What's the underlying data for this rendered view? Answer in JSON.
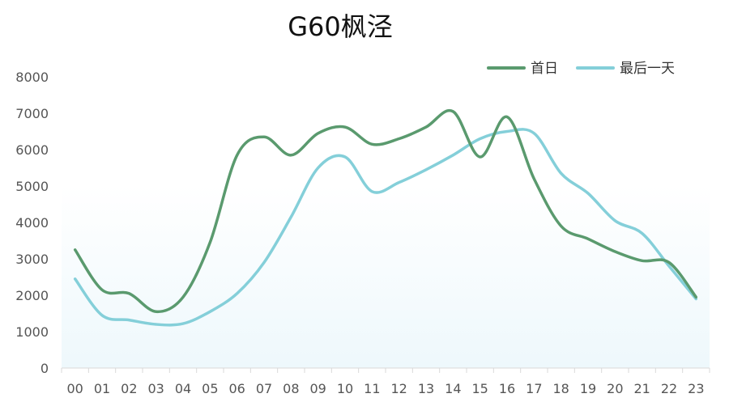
{
  "chart_data": {
    "type": "line",
    "title": "G60枫泾",
    "xlabel": "",
    "ylabel": "",
    "categories": [
      "00",
      "01",
      "02",
      "03",
      "04",
      "05",
      "06",
      "07",
      "08",
      "09",
      "10",
      "11",
      "12",
      "13",
      "14",
      "15",
      "16",
      "17",
      "18",
      "19",
      "20",
      "21",
      "22",
      "23"
    ],
    "ylim": [
      0,
      8000
    ],
    "yticks": [
      0,
      1000,
      2000,
      3000,
      4000,
      5000,
      6000,
      7000,
      8000
    ],
    "grid": false,
    "legend_position": "top-right",
    "series": [
      {
        "name": "首日",
        "color": "#5a9a6e",
        "values": [
          3250,
          2150,
          2050,
          1550,
          1950,
          3450,
          5850,
          6350,
          5850,
          6450,
          6620,
          6150,
          6300,
          6620,
          7050,
          5800,
          6900,
          5200,
          3900,
          3550,
          3200,
          2950,
          2900,
          1950
        ]
      },
      {
        "name": "最后一天",
        "color": "#84cfd9",
        "values": [
          2450,
          1450,
          1320,
          1200,
          1220,
          1550,
          2050,
          2900,
          4150,
          5500,
          5800,
          4850,
          5100,
          5450,
          5850,
          6300,
          6500,
          6450,
          5350,
          4800,
          4050,
          3700,
          2800,
          1900
        ]
      }
    ]
  }
}
